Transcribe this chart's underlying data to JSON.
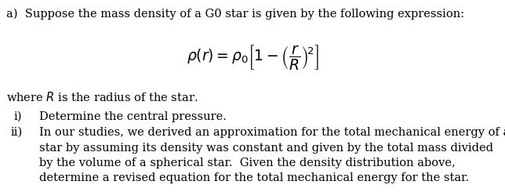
{
  "background_color": "#ffffff",
  "text_color": "#000000",
  "line1": "a)  Suppose the mass density of a G0 star is given by the following expression:",
  "equation": "$\\rho(r) = \\rho_0 \\left[1 - \\left(\\dfrac{r}{R}\\right)^{\\!2}\\right]$",
  "where_text": "where $R$ is the radius of the star.",
  "item_i_label": "i)",
  "item_i_text": "Determine the central pressure.",
  "item_ii_label": "ii)",
  "item_ii_line1": "In our studies, we derived an approximation for the total mechanical energy of a",
  "item_ii_line2": "star by assuming its density was constant and given by the total mass divided",
  "item_ii_line3": "by the volume of a spherical star.  Given the density distribution above,",
  "item_ii_line4": "determine a revised equation for the total mechanical energy for the star.",
  "font_size_body": 10.5,
  "font_size_eq": 13.5,
  "fig_width": 6.44,
  "fig_height": 2.45,
  "dpi": 100
}
